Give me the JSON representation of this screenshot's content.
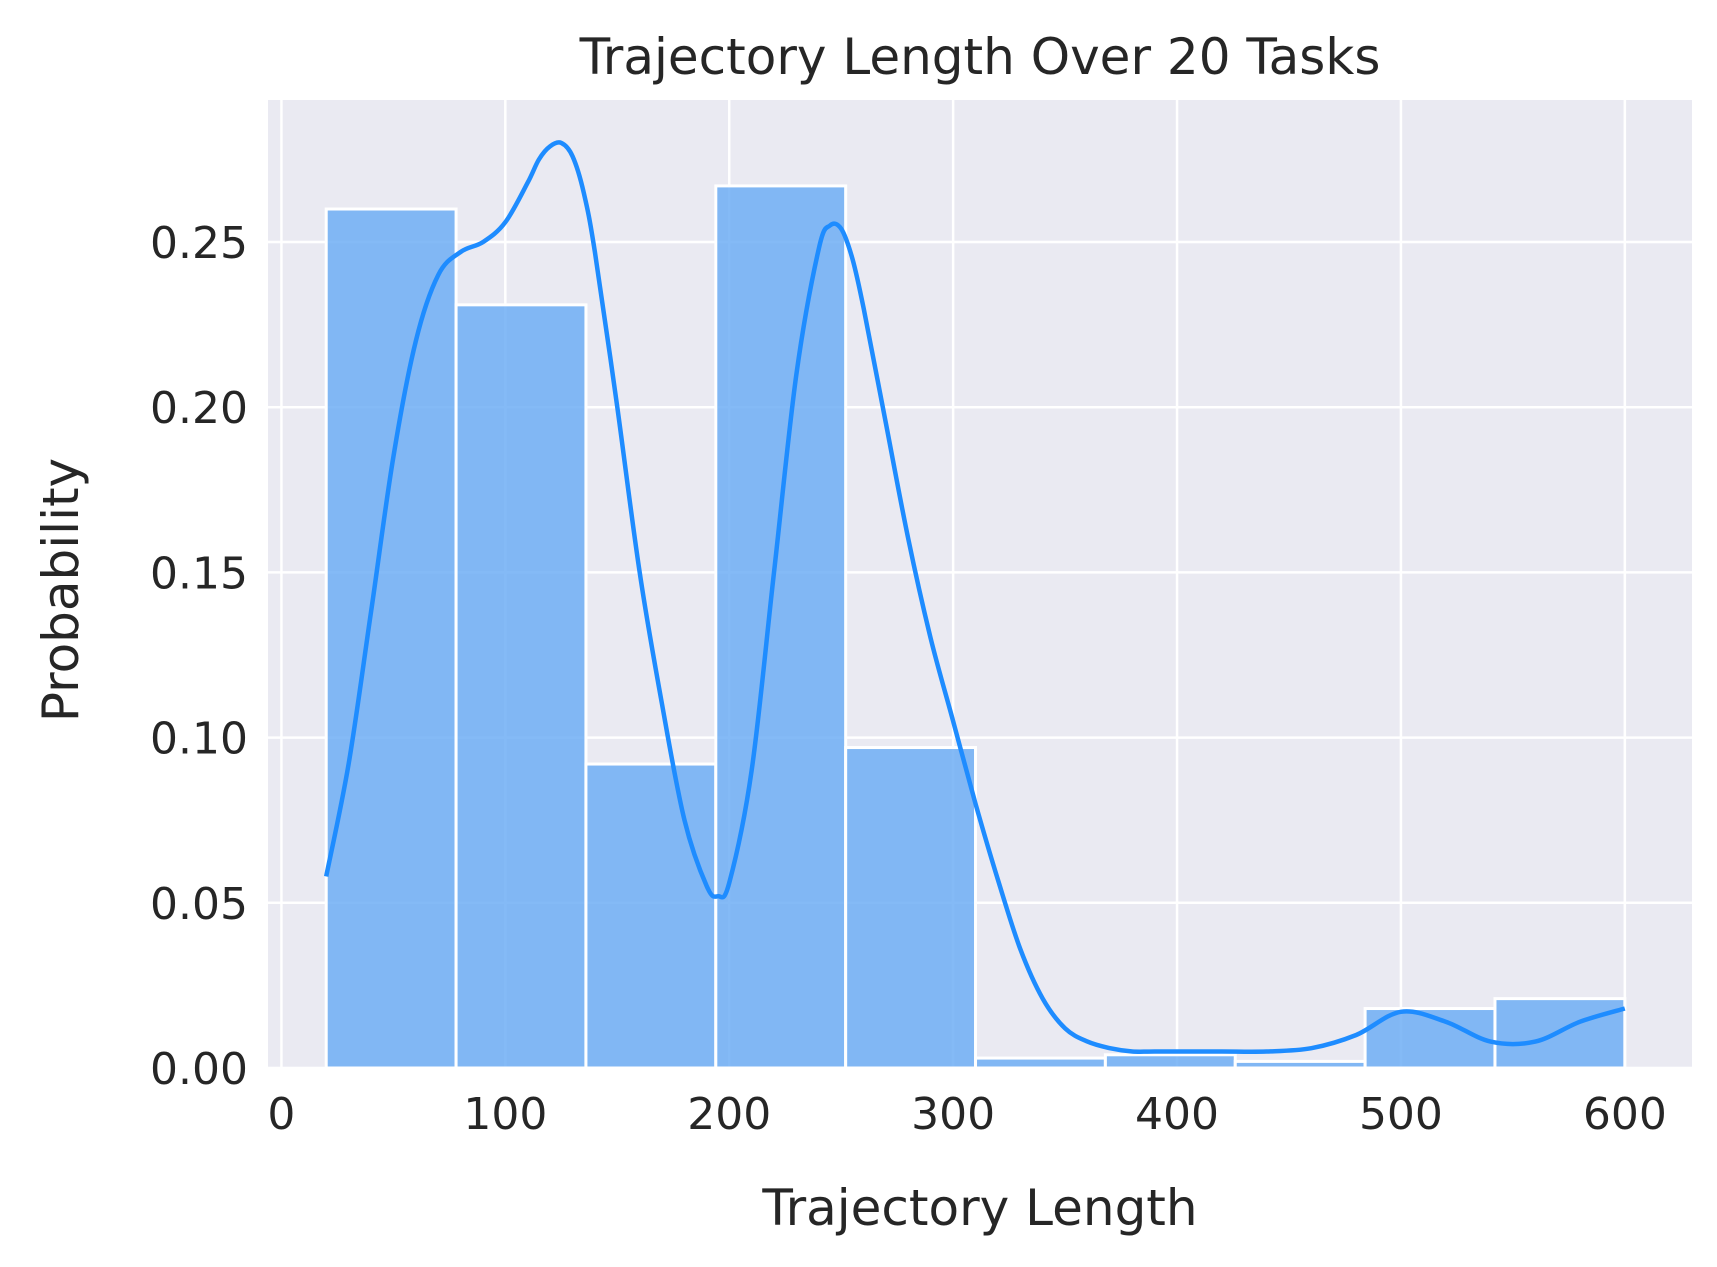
{
  "chart_data": {
    "type": "bar",
    "title": "Trajectory Length Over 20 Tasks",
    "xlabel": "Trajectory Length",
    "ylabel": "Probability",
    "xlim": [
      -6,
      630
    ],
    "ylim": [
      0,
      0.293
    ],
    "xticks": [
      0,
      100,
      200,
      300,
      400,
      500,
      600
    ],
    "xtick_labels": [
      "0",
      "100",
      "200",
      "300",
      "400",
      "500",
      "600"
    ],
    "yticks": [
      0,
      0.05,
      0.1,
      0.15,
      0.2,
      0.25
    ],
    "ytick_labels": [
      "0.00",
      "0.05",
      "0.10",
      "0.15",
      "0.20",
      "0.25"
    ],
    "grid": true,
    "bins": [
      {
        "x0": 20,
        "x1": 78,
        "value": 0.26
      },
      {
        "x0": 78,
        "x1": 136,
        "value": 0.231
      },
      {
        "x0": 136,
        "x1": 194,
        "value": 0.092
      },
      {
        "x0": 194,
        "x1": 252,
        "value": 0.267
      },
      {
        "x0": 252,
        "x1": 310,
        "value": 0.097
      },
      {
        "x0": 310,
        "x1": 368,
        "value": 0.003
      },
      {
        "x0": 368,
        "x1": 426,
        "value": 0.004
      },
      {
        "x0": 426,
        "x1": 484,
        "value": 0.002
      },
      {
        "x0": 484,
        "x1": 542,
        "value": 0.018
      },
      {
        "x0": 542,
        "x1": 600,
        "value": 0.021
      }
    ],
    "kde": {
      "x": [
        20,
        30,
        40,
        50,
        60,
        70,
        80,
        90,
        100,
        110,
        115,
        120,
        125,
        130,
        135,
        140,
        150,
        160,
        170,
        180,
        190,
        195,
        200,
        210,
        220,
        230,
        240,
        245,
        250,
        255,
        260,
        270,
        280,
        290,
        300,
        310,
        320,
        330,
        340,
        350,
        360,
        370,
        380,
        390,
        400,
        420,
        440,
        460,
        480,
        500,
        520,
        540,
        560,
        580,
        600
      ],
      "y": [
        0.058,
        0.092,
        0.138,
        0.185,
        0.22,
        0.24,
        0.247,
        0.25,
        0.256,
        0.268,
        0.275,
        0.279,
        0.28,
        0.276,
        0.265,
        0.247,
        0.2,
        0.15,
        0.11,
        0.075,
        0.055,
        0.052,
        0.056,
        0.09,
        0.15,
        0.21,
        0.248,
        0.255,
        0.254,
        0.245,
        0.23,
        0.195,
        0.16,
        0.13,
        0.105,
        0.08,
        0.057,
        0.036,
        0.021,
        0.012,
        0.008,
        0.006,
        0.005,
        0.005,
        0.005,
        0.005,
        0.005,
        0.006,
        0.01,
        0.017,
        0.014,
        0.008,
        0.008,
        0.014,
        0.018
      ]
    },
    "colors": {
      "bar_fill": "#6eaef5",
      "bar_edge": "#ffffff",
      "kde_line": "#1e8cff",
      "plot_background": "#eaeaf2",
      "grid": "#ffffff"
    }
  }
}
